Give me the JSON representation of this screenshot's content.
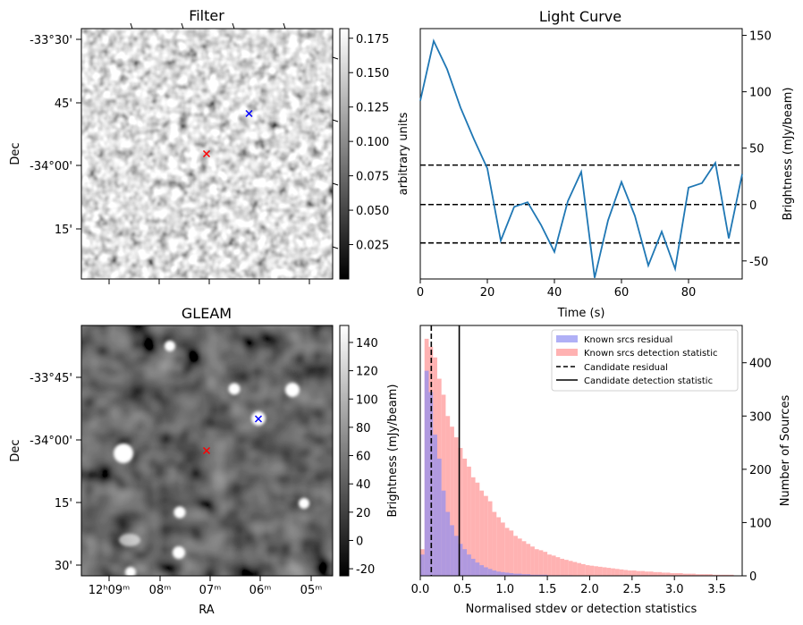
{
  "colors": {
    "line": "#1f77b4",
    "known_resid": "#8f8ff2",
    "known_det": "#ff9f9f",
    "cand_x_red": "#ff0000",
    "cand_x_blue": "#0000ff"
  },
  "chart_data": [
    {
      "type": "heatmap",
      "title": "Filter",
      "xlabel": "",
      "ylabel": "Dec",
      "yticks": [
        "-33°30'",
        "45'",
        "-34°00'",
        "15'"
      ],
      "colorbar": {
        "ticks": [
          "0.175",
          "0.150",
          "0.125",
          "0.100",
          "0.075",
          "0.050",
          "0.025"
        ],
        "tick_values": [
          0.175,
          0.15,
          0.125,
          0.1,
          0.075,
          0.05,
          0.025
        ],
        "range": [
          0.0,
          0.182
        ],
        "cmap": "gray"
      },
      "markers": [
        {
          "symbol": "x",
          "color": "red",
          "ra": "12h07m06s",
          "dec": "-33°56'"
        },
        {
          "symbol": "x",
          "color": "blue",
          "ra": "12h06m00s",
          "dec": "-33°50'"
        }
      ]
    },
    {
      "type": "line",
      "title": "Light Curve",
      "xlabel": "Time (s)",
      "ylabel_left": "arbitrary units",
      "ylabel_right": "Brightness (mJy/beam)",
      "xlim": [
        0,
        96
      ],
      "ylim": [
        -66,
        156
      ],
      "xticks": [
        "0",
        "20",
        "40",
        "60",
        "80"
      ],
      "yticks": [
        "-50",
        "0",
        "50",
        "100",
        "150"
      ],
      "x": [
        0,
        4,
        8,
        12,
        16,
        20,
        24,
        28,
        32,
        36,
        40,
        44,
        48,
        52,
        56,
        60,
        64,
        68,
        72,
        76,
        80,
        84,
        88,
        92,
        96
      ],
      "y": [
        92,
        145,
        120,
        86,
        58,
        32,
        -32,
        -2,
        2,
        -18,
        -42,
        3,
        29,
        -65,
        -14,
        20,
        -10,
        -54,
        -24,
        -57,
        15,
        19,
        37,
        -30,
        27
      ],
      "hlines": [
        {
          "y": 35,
          "style": "dashed"
        },
        {
          "y": 0,
          "style": "dashed"
        },
        {
          "y": -34,
          "style": "dashed"
        }
      ]
    },
    {
      "type": "heatmap",
      "title": "GLEAM",
      "xlabel": "RA",
      "ylabel": "Dec",
      "xticks": [
        "12ʰ09ᵐ",
        "08ᵐ",
        "07ᵐ",
        "06ᵐ",
        "05ᵐ"
      ],
      "yticks": [
        "-33°45'",
        "-34°00'",
        "15'",
        "30'"
      ],
      "colorbar": {
        "label": "Brightness (mJy/beam)",
        "ticks": [
          "140",
          "120",
          "100",
          "80",
          "60",
          "40",
          "20",
          "0",
          "-20"
        ],
        "tick_values": [
          140,
          120,
          100,
          80,
          60,
          40,
          20,
          0,
          -20
        ],
        "range": [
          -25,
          152
        ],
        "cmap": "gray"
      },
      "sources": [
        {
          "ra": "12h07m39s",
          "dec": "-33°37'",
          "size": 1
        },
        {
          "ra": "12h06m21s",
          "dec": "-33°46'",
          "size": 1
        },
        {
          "ra": "12h05m28s",
          "dec": "-33°46'",
          "size": 1.3
        },
        {
          "ra": "12h05m59s",
          "dec": "-33°52'",
          "size": 1.3
        },
        {
          "ra": "12h08m26s",
          "dec": "-34°03'",
          "size": 1.8
        },
        {
          "ra": "12h07m34s",
          "dec": "-34°18'",
          "size": 1
        },
        {
          "ra": "12h05m09s",
          "dec": "-34°16'",
          "size": 1
        },
        {
          "ra": "12h07m34s",
          "dec": "-34°28'",
          "size": 1.2
        },
        {
          "ra": "12h08m24s",
          "dec": "-34°27'",
          "size": 1.3
        },
        {
          "ra": "12h08m22s",
          "dec": "-34°34'",
          "size": 1
        }
      ],
      "markers": [
        {
          "symbol": "x",
          "color": "red",
          "ra": "12h07m06s",
          "dec": "-34°02'"
        },
        {
          "symbol": "x",
          "color": "blue",
          "ra": "12h05m59s",
          "dec": "-33°52'"
        }
      ]
    },
    {
      "type": "bar",
      "subtype": "histogram",
      "xlabel": "Normalised stdev or detection statistics",
      "ylabel_right": "Number of Sources",
      "xlim": [
        0,
        3.8
      ],
      "ylim": [
        0,
        470
      ],
      "xticks": [
        "0.0",
        "0.5",
        "1.0",
        "1.5",
        "2.0",
        "2.5",
        "3.0",
        "3.5"
      ],
      "yticks": [
        "0",
        "100",
        "200",
        "300",
        "400"
      ],
      "bin_width": 0.05,
      "series": [
        {
          "name": "Known srcs residual",
          "values": [
            40,
            385,
            345,
            265,
            220,
            160,
            120,
            95,
            75,
            60,
            50,
            40,
            32,
            25,
            20,
            16,
            13,
            10,
            8,
            7,
            6,
            5,
            4,
            4,
            3,
            3,
            2,
            2,
            2,
            2,
            1,
            1,
            1,
            1,
            1,
            1
          ]
        },
        {
          "name": "Known srcs detection statistic",
          "values": [
            50,
            445,
            430,
            410,
            370,
            340,
            300,
            280,
            260,
            240,
            220,
            205,
            185,
            175,
            160,
            150,
            140,
            120,
            110,
            100,
            90,
            85,
            75,
            70,
            65,
            60,
            55,
            50,
            48,
            45,
            40,
            38,
            35,
            32,
            30,
            28,
            26,
            24,
            22,
            20,
            19,
            18,
            17,
            16,
            15,
            14,
            13,
            12,
            11,
            10,
            10,
            9,
            9,
            8,
            8,
            7,
            7,
            6,
            6,
            5,
            5,
            5,
            4,
            4,
            4,
            3,
            3,
            3,
            3,
            2,
            2,
            2,
            2,
            2
          ]
        },
        {
          "name": "Candidate residual",
          "x": 0.13,
          "style": "dashed"
        },
        {
          "name": "Candidate detection statistic",
          "x": 0.46,
          "style": "solid"
        }
      ],
      "legend_position": "top-right"
    }
  ]
}
